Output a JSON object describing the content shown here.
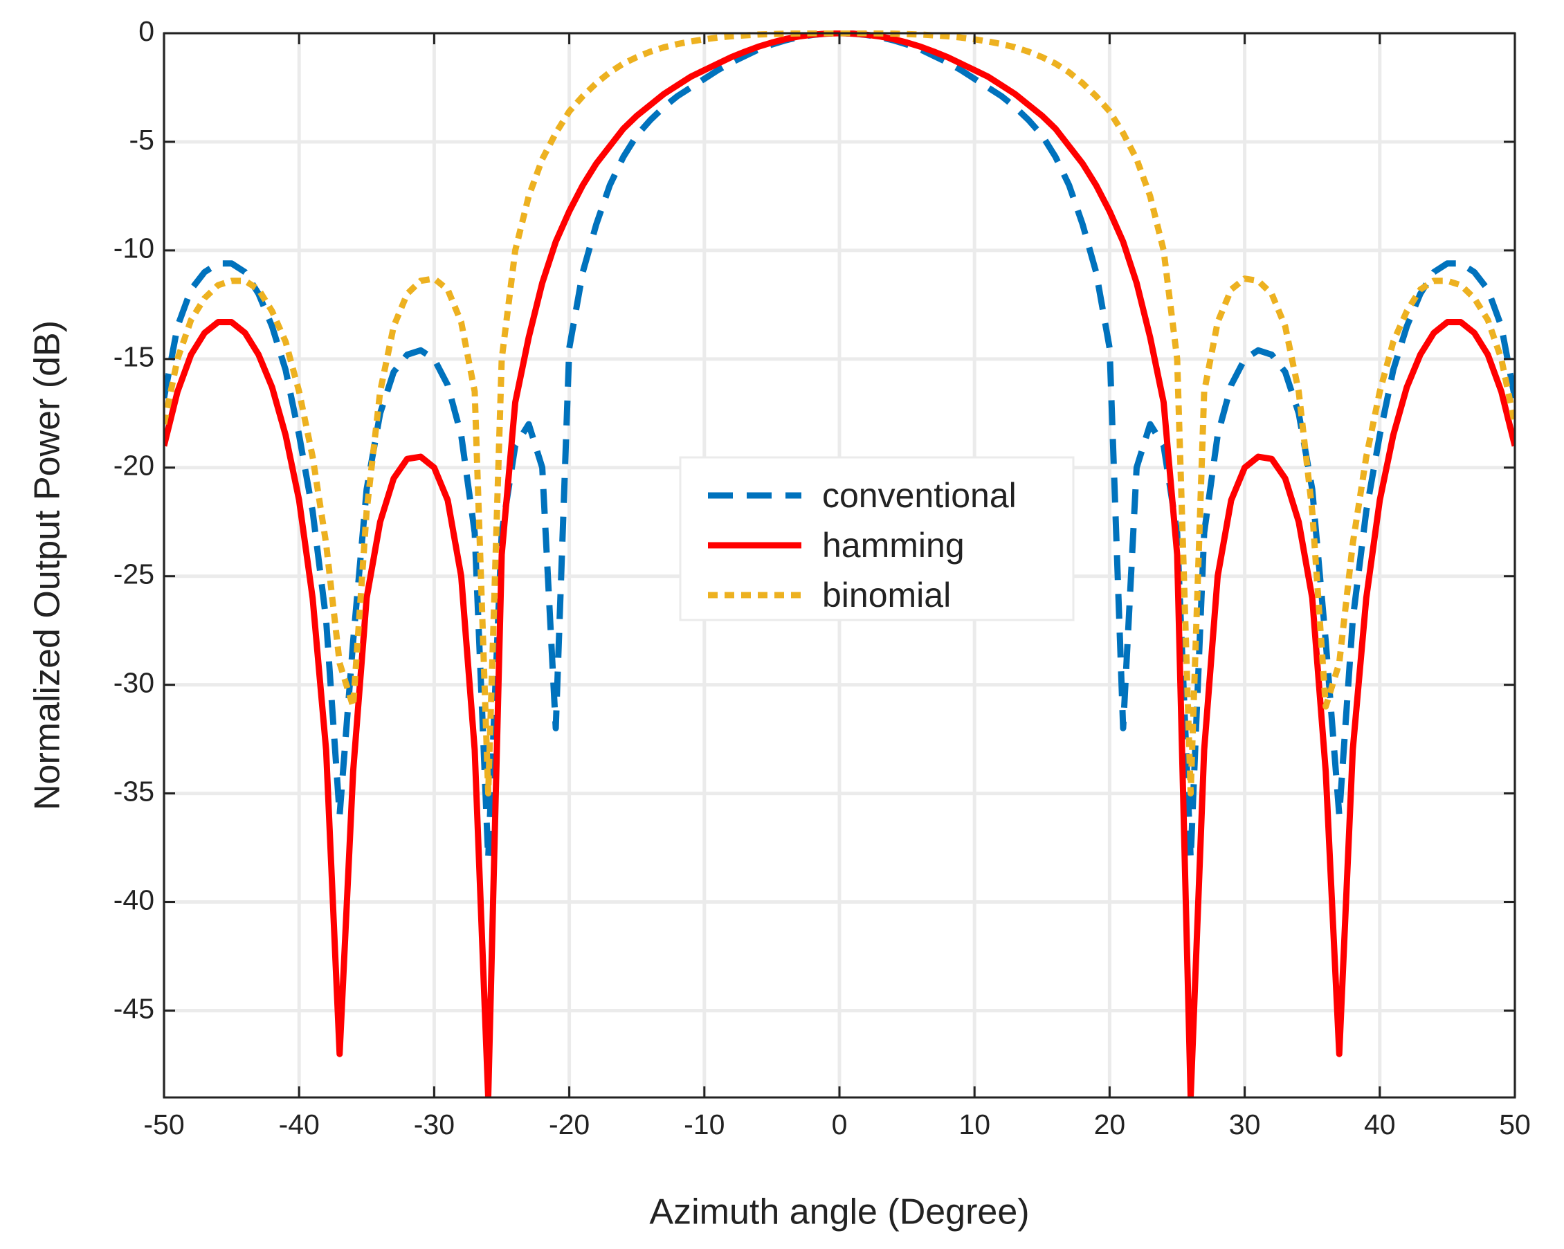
{
  "chart_data": {
    "type": "line",
    "xlabel": "Azimuth angle (Degree)",
    "ylabel": "Normalized Output Power (dB)",
    "xlim": [
      -50,
      50
    ],
    "xticks": [
      -50,
      -40,
      -30,
      -20,
      -10,
      0,
      10,
      20,
      30,
      40,
      50
    ],
    "ylim": [
      -49,
      0
    ],
    "yticks": [
      0,
      -5,
      -10,
      -15,
      -20,
      -25,
      -30,
      -35,
      -40,
      -45
    ],
    "grid": true,
    "legend_position": "center",
    "x": [
      -50,
      -49,
      -48,
      -47,
      -46,
      -45,
      -44,
      -43,
      -42,
      -41,
      -40,
      -39,
      -38,
      -37,
      -36,
      -35,
      -34,
      -33,
      -32,
      -31,
      -30,
      -29,
      -28,
      -27,
      -26,
      -25,
      -24,
      -23,
      -22,
      -21,
      -20,
      -19,
      -18,
      -17,
      -16,
      -15,
      -14,
      -13,
      -12,
      -11,
      -10,
      -9,
      -8,
      -7,
      -6,
      -5,
      -4,
      -3,
      -2,
      -1,
      0,
      1,
      2,
      3,
      4,
      5,
      6,
      7,
      8,
      9,
      10,
      11,
      12,
      13,
      14,
      15,
      16,
      17,
      18,
      19,
      20,
      21,
      22,
      23,
      24,
      25,
      26,
      27,
      28,
      29,
      30,
      31,
      32,
      33,
      34,
      35,
      36,
      37,
      38,
      39,
      40,
      41,
      42,
      43,
      44,
      45,
      46,
      47,
      48,
      49,
      50
    ],
    "series": [
      {
        "name": "conventional",
        "color": "#0072bd",
        "dash": "dashed",
        "values": [
          -16.8,
          -13.5,
          -11.8,
          -11,
          -10.6,
          -10.6,
          -11,
          -12,
          -13.5,
          -15.5,
          -18.5,
          -22,
          -27,
          -36,
          -28,
          -21,
          -17.5,
          -15.6,
          -14.8,
          -14.6,
          -15,
          -16.2,
          -18.5,
          -23,
          -38,
          -23,
          -19,
          -18,
          -20,
          -32,
          -14.5,
          -11,
          -8.8,
          -7,
          -5.7,
          -4.7,
          -4,
          -3.4,
          -2.9,
          -2.5,
          -2.1,
          -1.7,
          -1.35,
          -1.05,
          -0.75,
          -0.52,
          -0.33,
          -0.18,
          -0.08,
          -0.02,
          0,
          -0.02,
          -0.08,
          -0.18,
          -0.33,
          -0.52,
          -0.75,
          -1.05,
          -1.35,
          -1.7,
          -2.1,
          -2.5,
          -2.9,
          -3.4,
          -4,
          -4.7,
          -5.7,
          -7,
          -8.8,
          -11,
          -14.5,
          -32,
          -20,
          -18,
          -19,
          -23,
          -38,
          -23,
          -18.5,
          -16.2,
          -15,
          -14.6,
          -14.8,
          -15.6,
          -17.5,
          -21,
          -28,
          -36,
          -27,
          -22,
          -18.5,
          -15.5,
          -13.5,
          -12,
          -11,
          -10.6,
          -10.6,
          -11,
          -11.8,
          -13.5,
          -16.8
        ]
      },
      {
        "name": "hamming",
        "color": "#ff0000",
        "dash": "solid",
        "values": [
          -19,
          -16.5,
          -14.8,
          -13.8,
          -13.3,
          -13.3,
          -13.8,
          -14.8,
          -16.3,
          -18.5,
          -21.5,
          -26,
          -33,
          -47,
          -34,
          -26,
          -22.5,
          -20.5,
          -19.6,
          -19.5,
          -20,
          -21.5,
          -25,
          -33,
          -49,
          -24,
          -17,
          -14,
          -11.5,
          -9.6,
          -8.2,
          -7,
          -6,
          -5.2,
          -4.4,
          -3.8,
          -3.3,
          -2.8,
          -2.4,
          -2,
          -1.7,
          -1.4,
          -1.1,
          -0.85,
          -0.62,
          -0.43,
          -0.27,
          -0.15,
          -0.07,
          -0.02,
          0,
          -0.02,
          -0.07,
          -0.15,
          -0.27,
          -0.43,
          -0.62,
          -0.85,
          -1.1,
          -1.4,
          -1.7,
          -2,
          -2.4,
          -2.8,
          -3.3,
          -3.8,
          -4.4,
          -5.2,
          -6,
          -7,
          -8.2,
          -9.6,
          -11.5,
          -14,
          -17,
          -24,
          -49,
          -33,
          -25,
          -21.5,
          -20,
          -19.5,
          -19.6,
          -20.5,
          -22.5,
          -26,
          -34,
          -47,
          -33,
          -26,
          -21.5,
          -18.5,
          -16.3,
          -14.8,
          -13.8,
          -13.3,
          -13.3,
          -13.8,
          -14.8,
          -16.5,
          -19
        ]
      },
      {
        "name": "binomial",
        "color": "#edb120",
        "dash": "dotted",
        "values": [
          -18,
          -15,
          -13.2,
          -12.2,
          -11.6,
          -11.4,
          -11.4,
          -11.8,
          -12.8,
          -14.2,
          -16.5,
          -19.5,
          -23.5,
          -29,
          -31,
          -22,
          -16.5,
          -13.5,
          -12,
          -11.4,
          -11.3,
          -11.8,
          -13.3,
          -16.5,
          -35,
          -15,
          -10,
          -7.5,
          -5.8,
          -4.6,
          -3.6,
          -2.9,
          -2.3,
          -1.8,
          -1.4,
          -1.1,
          -0.85,
          -0.65,
          -0.5,
          -0.38,
          -0.28,
          -0.2,
          -0.14,
          -0.1,
          -0.06,
          -0.04,
          -0.02,
          -0.01,
          0,
          0,
          0,
          0,
          0,
          -0.01,
          -0.02,
          -0.04,
          -0.06,
          -0.1,
          -0.14,
          -0.2,
          -0.28,
          -0.38,
          -0.5,
          -0.65,
          -0.85,
          -1.1,
          -1.4,
          -1.8,
          -2.3,
          -2.9,
          -3.6,
          -4.6,
          -5.8,
          -7.5,
          -10,
          -15,
          -35,
          -16.5,
          -13.3,
          -11.8,
          -11.3,
          -11.4,
          -12,
          -13.5,
          -16.5,
          -22,
          -31,
          -29,
          -23.5,
          -19.5,
          -16.5,
          -14.2,
          -12.8,
          -11.8,
          -11.4,
          -11.4,
          -11.6,
          -12.2,
          -13.2,
          -15,
          -18
        ]
      }
    ]
  }
}
